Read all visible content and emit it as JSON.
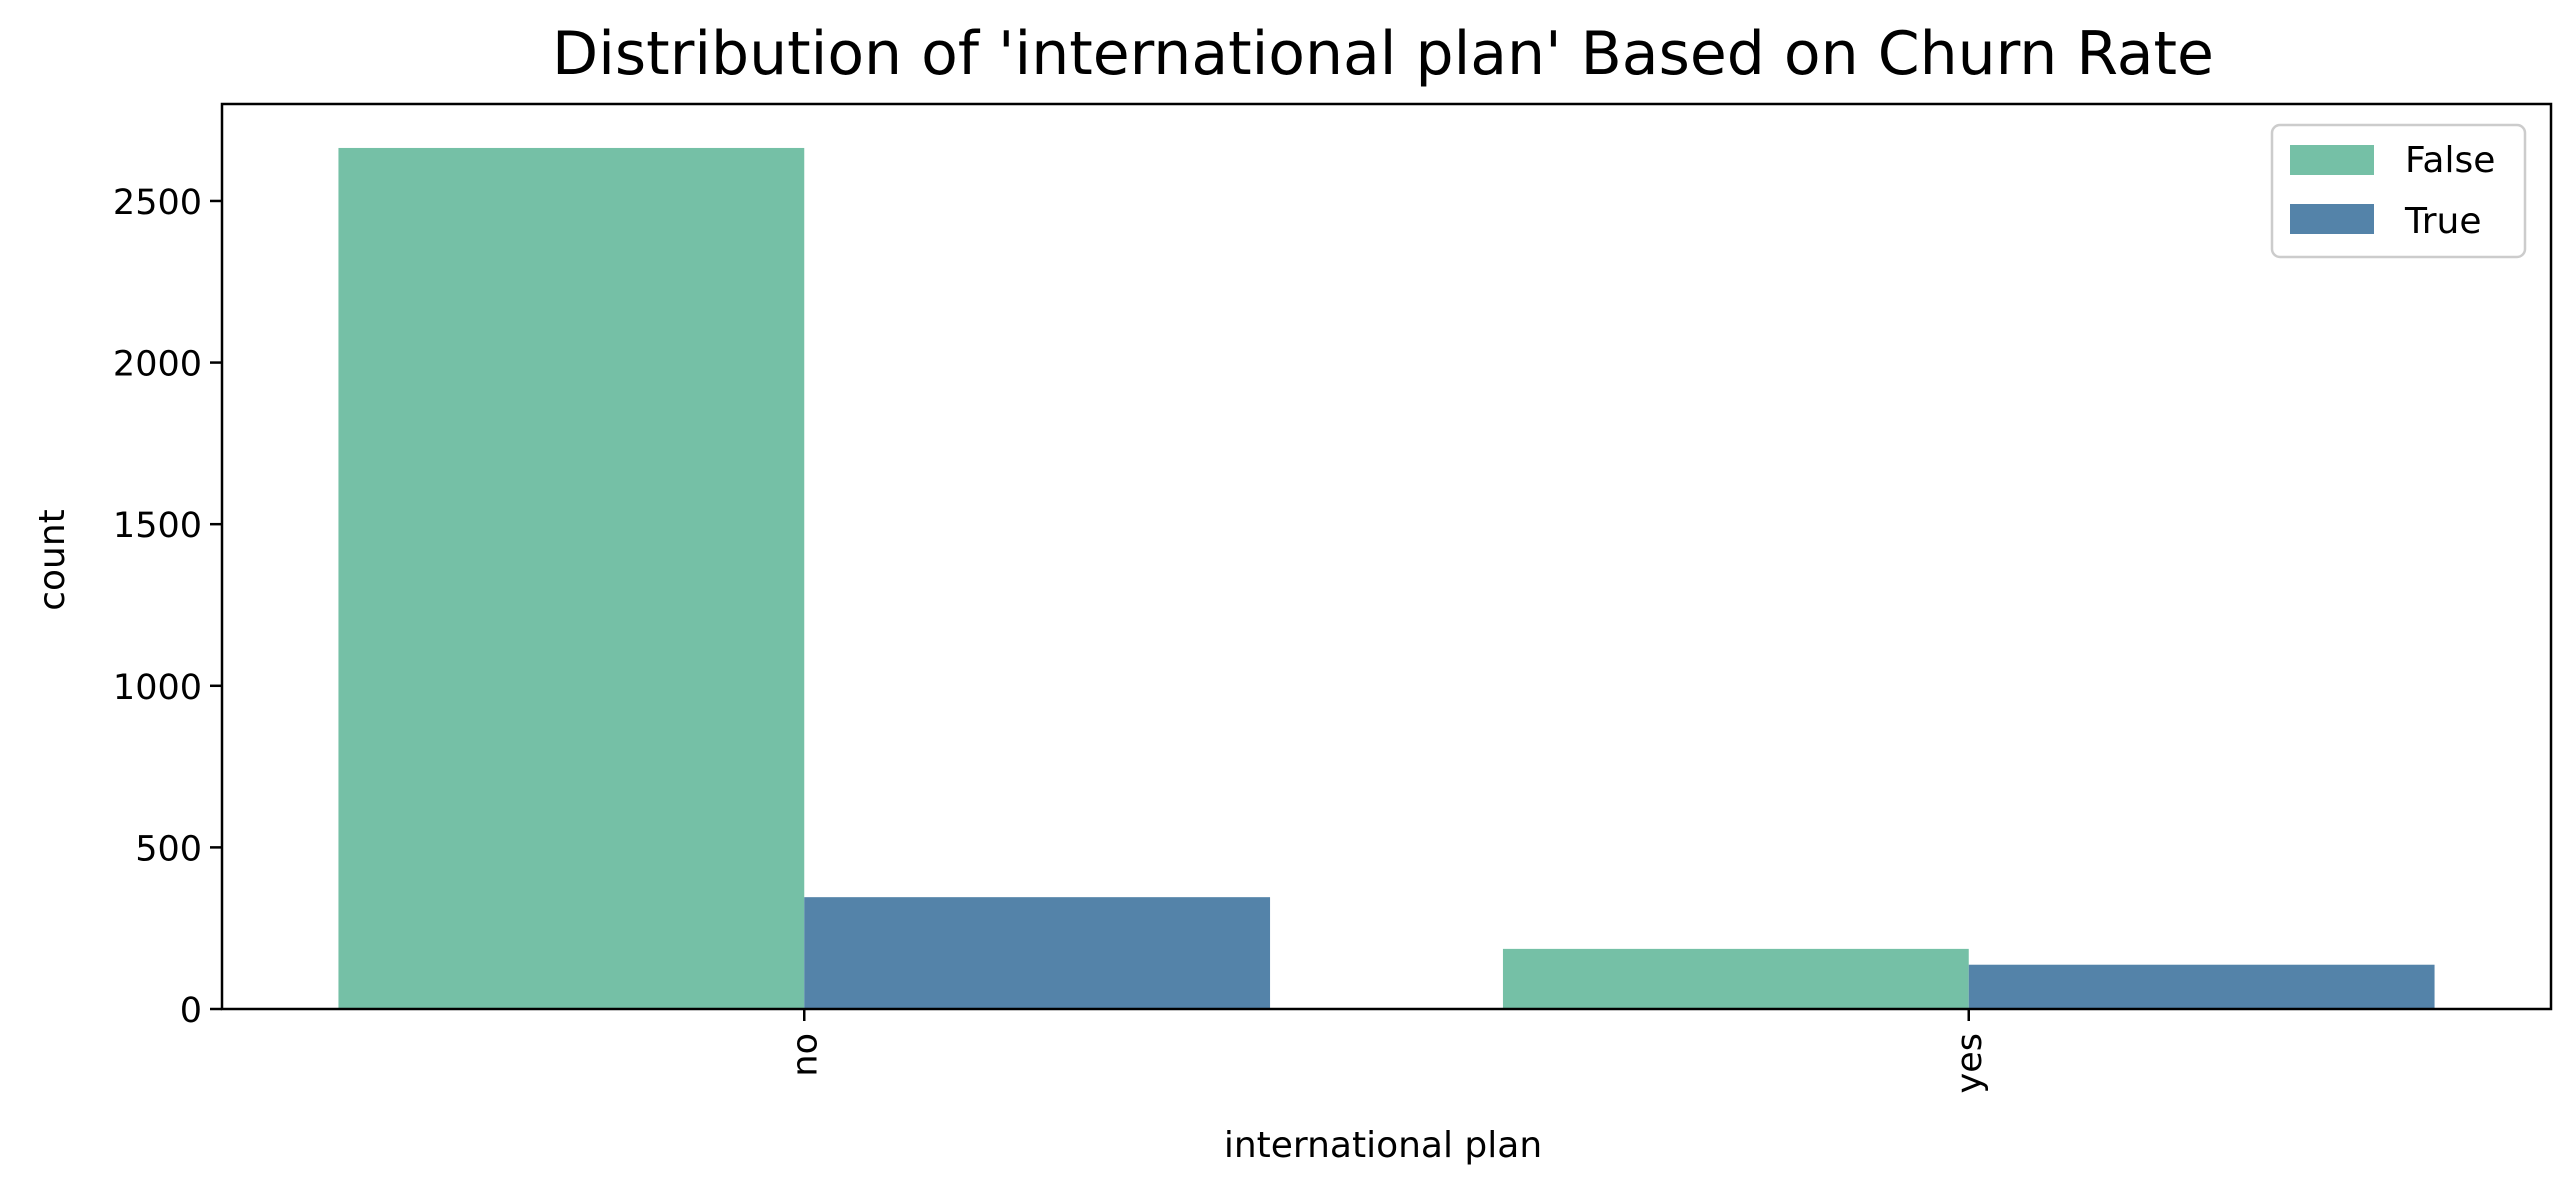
{
  "chart_data": {
    "type": "bar",
    "title": "Distribution of 'international plan' Based on Churn Rate",
    "xlabel": "international plan",
    "ylabel": "count",
    "categories": [
      "no",
      "yes"
    ],
    "series": [
      {
        "name": "False",
        "values": [
          2664,
          186
        ],
        "color": "#75c0a6"
      },
      {
        "name": "True",
        "values": [
          346,
          137
        ],
        "color": "#5483a9"
      }
    ],
    "ylim": [
      0,
      2800
    ],
    "yticks": [
      0,
      500,
      1000,
      1500,
      2000,
      2500
    ],
    "grid": false,
    "legend_position": "top-right"
  }
}
